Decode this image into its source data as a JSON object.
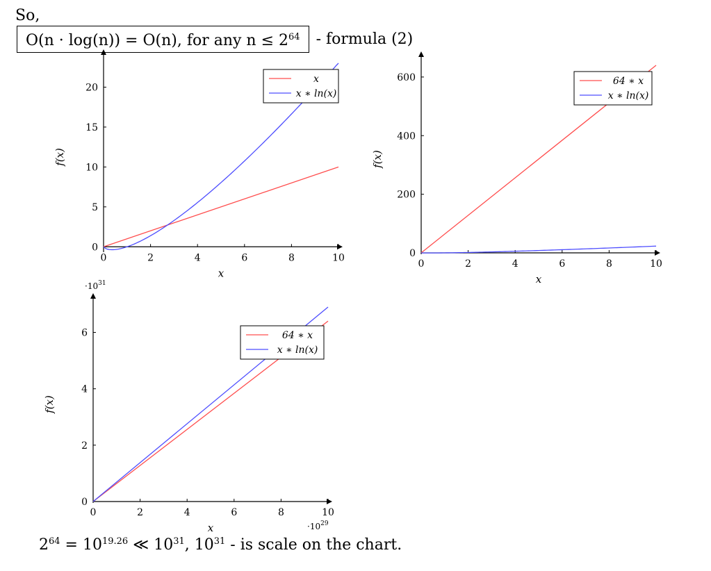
{
  "intro_text": "So,",
  "formula": {
    "main": "O(n · log(n)) = O(n), for any n ≤ 2",
    "exponent": "64",
    "suffix": "- formula (2)"
  },
  "footer": {
    "base": "2",
    "exp1": "64",
    "mid1": " = 10",
    "exp2": "19.26",
    "mid2": " ≪ 10",
    "exp3": "31",
    "mid3": ", 10",
    "exp4": "31",
    "tail": " - is scale on the chart."
  },
  "colors": {
    "red": "#ff4d4d",
    "blue": "#4d4dff",
    "axis": "#000000"
  },
  "chart_data": [
    {
      "type": "line",
      "xlabel": "x",
      "ylabel": "f(x)",
      "xlim": [
        0,
        10
      ],
      "ylim": [
        -0.5,
        23
      ],
      "x_ticks": [
        0,
        2,
        4,
        6,
        8,
        10
      ],
      "y_ticks": [
        0,
        5,
        10,
        15,
        20
      ],
      "legend_position": "top-right",
      "series": [
        {
          "name": "x",
          "color": "red",
          "x": [
            0,
            10
          ],
          "y": [
            0,
            10
          ]
        },
        {
          "name": "x ∗ ln(x)",
          "color": "blue",
          "function": "x*ln(x)",
          "x_range": [
            0,
            10
          ],
          "y_clip": 23
        }
      ]
    },
    {
      "type": "line",
      "xlabel": "x",
      "ylabel": "f(x)",
      "xlim": [
        0,
        10
      ],
      "ylim": [
        0,
        640
      ],
      "x_ticks": [
        0,
        2,
        4,
        6,
        8,
        10
      ],
      "y_ticks": [
        0,
        200,
        400,
        600
      ],
      "legend_position": "top-right",
      "series": [
        {
          "name": "64 ∗ x",
          "color": "red",
          "x": [
            0,
            10
          ],
          "y": [
            0,
            640
          ]
        },
        {
          "name": "x ∗ ln(x)",
          "color": "blue",
          "function": "x*ln(x)",
          "x_range": [
            0,
            10
          ],
          "y_clip": 640
        }
      ]
    },
    {
      "type": "line",
      "xlabel": "x",
      "ylabel": "f(x)",
      "xlim": [
        0,
        10
      ],
      "ylim": [
        0,
        6.9
      ],
      "x_ticks": [
        0,
        2,
        4,
        6,
        8,
        10
      ],
      "y_ticks": [
        0,
        2,
        4,
        6
      ],
      "x_scale_label": "·10^29",
      "y_scale_label": "·10^31",
      "legend_position": "top-right",
      "series": [
        {
          "name": "64 ∗ x",
          "color": "red",
          "x": [
            0,
            10
          ],
          "y": [
            0,
            6.4
          ]
        },
        {
          "name": "x ∗ ln(x)",
          "color": "blue",
          "x": [
            0,
            10
          ],
          "y": [
            0,
            6.9
          ]
        }
      ]
    }
  ]
}
